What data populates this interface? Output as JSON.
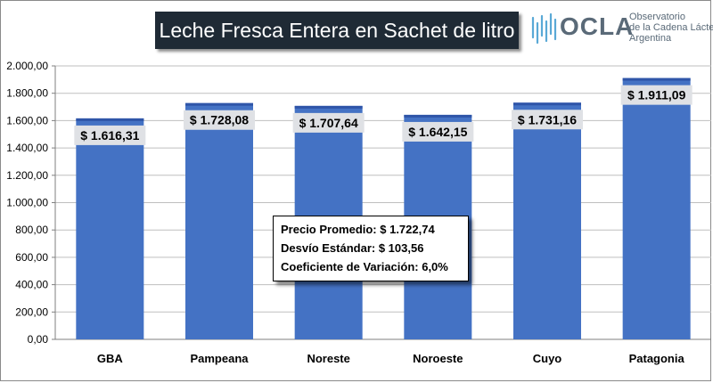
{
  "title": "Leche Fresca Entera en Sachet de litro",
  "logo": {
    "wordmark": "OCLA",
    "line1": "Observatorio",
    "line2": "de la Cadena Láctea",
    "line3": "Argentina"
  },
  "stats_box": {
    "row1": "Precio Promedio: $ 1.722,74",
    "row2": "Desvío Estándar: $ 103,56",
    "row3": "Coeficiente de Variación: 6,0%"
  },
  "colors": {
    "bar": "#4472c4",
    "bar_top": "#2f55a8",
    "label_bg": "#dfe1e5",
    "title_bg": "#1f2a35"
  },
  "chart_data": {
    "type": "bar",
    "title": "Leche Fresca Entera en Sachet de litro",
    "xlabel": "",
    "ylabel": "",
    "categories": [
      "GBA",
      "Pampeana",
      "Noreste",
      "Noroeste",
      "Cuyo",
      "Patagonia"
    ],
    "values": [
      1616.31,
      1728.08,
      1707.64,
      1642.15,
      1731.16,
      1911.09
    ],
    "data_labels": [
      "$ 1.616,31",
      "$ 1.728,08",
      "$ 1.707,64",
      "$ 1.642,15",
      "$ 1.731,16",
      "$ 1.911,09"
    ],
    "ylim": [
      0,
      2000
    ],
    "yticks": [
      0,
      200,
      400,
      600,
      800,
      1000,
      1200,
      1400,
      1600,
      1800,
      2000
    ],
    "ytick_labels": [
      "0,00",
      "200,00",
      "400,00",
      "600,00",
      "800,00",
      "1.000,00",
      "1.200,00",
      "1.400,00",
      "1.600,00",
      "1.800,00",
      "2.000,00"
    ],
    "grid": true,
    "legend": "none"
  }
}
